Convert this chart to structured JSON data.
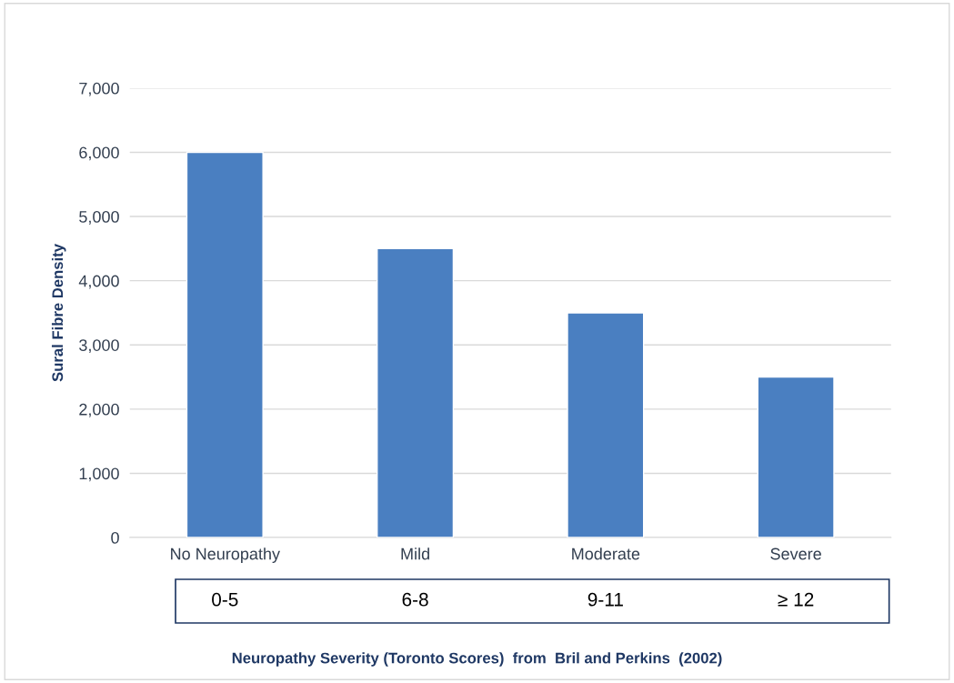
{
  "chart_data": {
    "type": "bar",
    "categories": [
      "No Neuropathy",
      "Mild",
      "Moderate",
      "Severe"
    ],
    "values": [
      6000,
      4500,
      3500,
      2500
    ],
    "color": "#4a7fc1",
    "ylabel": "Sural Fibre Density",
    "annotations": [
      "0-5",
      "6-8",
      "9-11",
      "≥ 12",
      "Neuropathy Severity (Toronto Scores)  from  Bril and Perkins  (2002)"
    ],
    "ylim": [
      0,
      7000
    ],
    "yticks": [
      {
        "value": 0,
        "label": "0"
      },
      {
        "value": 1000,
        "label": "1,000"
      },
      {
        "value": 2000,
        "label": "2,000"
      },
      {
        "value": 3000,
        "label": "3,000"
      },
      {
        "value": 4000,
        "label": "4,000"
      },
      {
        "value": 5000,
        "label": "5,000"
      },
      {
        "value": 6000,
        "label": "6,000"
      },
      {
        "value": 7000,
        "label": "7,000"
      }
    ],
    "grid": "y",
    "legend": false
  }
}
